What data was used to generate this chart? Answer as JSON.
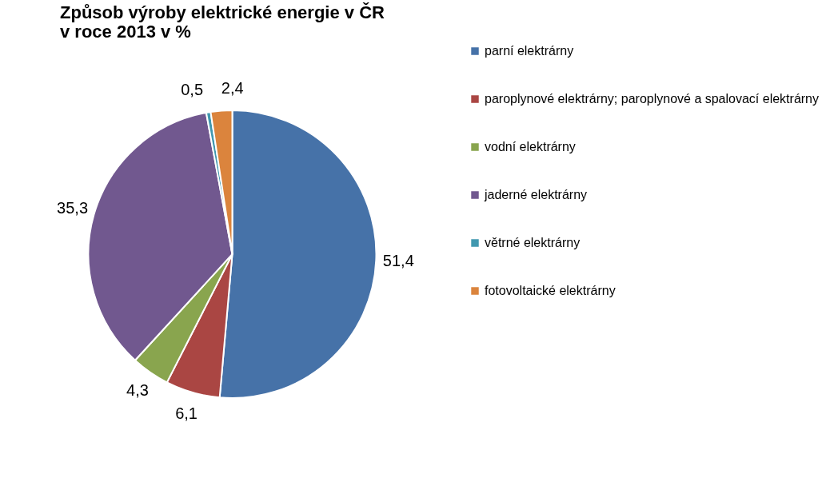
{
  "chart_data": {
    "type": "pie",
    "title": "Způsob výroby elektrické energie v ČR\nv roce 2013 v %",
    "categories": [
      "parní elektrárny",
      "paroplynové elektrárny; paroplynové a spalovací elektrárny",
      "vodní elektrárny",
      "jaderné elektrárny",
      "větrné elektrárny",
      "fotovoltaické elektrárny"
    ],
    "values": [
      51.4,
      6.1,
      4.3,
      35.3,
      0.5,
      2.4
    ],
    "value_labels": [
      "51,4",
      "6,1",
      "4,3",
      "35,3",
      "0,5",
      "2,4"
    ],
    "colors": [
      "#4672a8",
      "#aa4643",
      "#89a54e",
      "#71588f",
      "#4198af",
      "#db843d"
    ],
    "legend": "right"
  }
}
